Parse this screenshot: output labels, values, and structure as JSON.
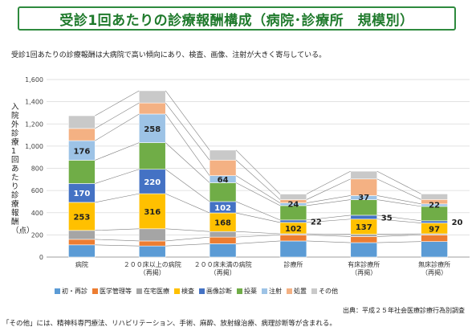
{
  "title": "受診1回あたりの診療報酬構成（病院･診療所　規模別）",
  "subtitle": "受診1回あたりの診療報酬は大病院で高い傾向にあり、検査、画像、注射が大きく寄与している。",
  "source": "出典：平成２５年社会医療診療行為別調査",
  "footnote": "「その他」には、精神科専門療法、リハビリテーション、手術、麻酔、放射線治療、病理診断等が含まれる。",
  "chart_data": {
    "type": "bar",
    "stacked": true,
    "ylabel": "入院外診療1回あたり診療報酬（点）",
    "ylim": [
      0,
      1600
    ],
    "yticks": [
      "0",
      "200",
      "400",
      "600",
      "800",
      "1,000",
      "1,200",
      "1,400",
      "1,600"
    ],
    "categories": [
      [
        "病院"
      ],
      [
        "２００床以上の病院",
        "（再掲）"
      ],
      [
        "２００床未満の病院",
        "（再掲）"
      ],
      [
        "診療所"
      ],
      [
        "有床診療所",
        "（再掲）"
      ],
      [
        "無床診療所",
        "（再掲）"
      ]
    ],
    "series": [
      {
        "name": "初・再診",
        "color": "#5b9bd5",
        "values": [
          110,
          100,
          120,
          145,
          130,
          140
        ]
      },
      {
        "name": "医学管理等",
        "color": "#ed7d31",
        "values": [
          50,
          45,
          60,
          55,
          55,
          60
        ]
      },
      {
        "name": "在宅医療",
        "color": "#a5a5a5",
        "values": [
          80,
          110,
          50,
          10,
          20,
          10
        ]
      },
      {
        "name": "検査",
        "color": "#ffc000",
        "values": [
          253,
          316,
          168,
          102,
          137,
          97
        ]
      },
      {
        "name": "画像診断",
        "color": "#4472c4",
        "values": [
          170,
          220,
          102,
          22,
          35,
          20
        ]
      },
      {
        "name": "投薬",
        "color": "#70ad47",
        "values": [
          210,
          240,
          170,
          130,
          140,
          130
        ]
      },
      {
        "name": "注射",
        "color": "#9dc3e6",
        "values": [
          176,
          258,
          64,
          24,
          37,
          22
        ]
      },
      {
        "name": "処置",
        "color": "#f4b183",
        "values": [
          110,
          100,
          140,
          30,
          150,
          40
        ]
      },
      {
        "name": "その他",
        "color": "#c9c9c9",
        "values": [
          115,
          110,
          90,
          50,
          70,
          50
        ]
      }
    ],
    "data_labels": [
      {
        "series": 3,
        "values": [
          "253",
          "316",
          "168",
          "102",
          "137",
          "97"
        ]
      },
      {
        "series": 4,
        "values": [
          "170",
          "220",
          "102",
          "22",
          "35",
          "20"
        ]
      },
      {
        "series": 6,
        "values": [
          "176",
          "258",
          "64",
          "24",
          "37",
          "22"
        ]
      }
    ]
  }
}
